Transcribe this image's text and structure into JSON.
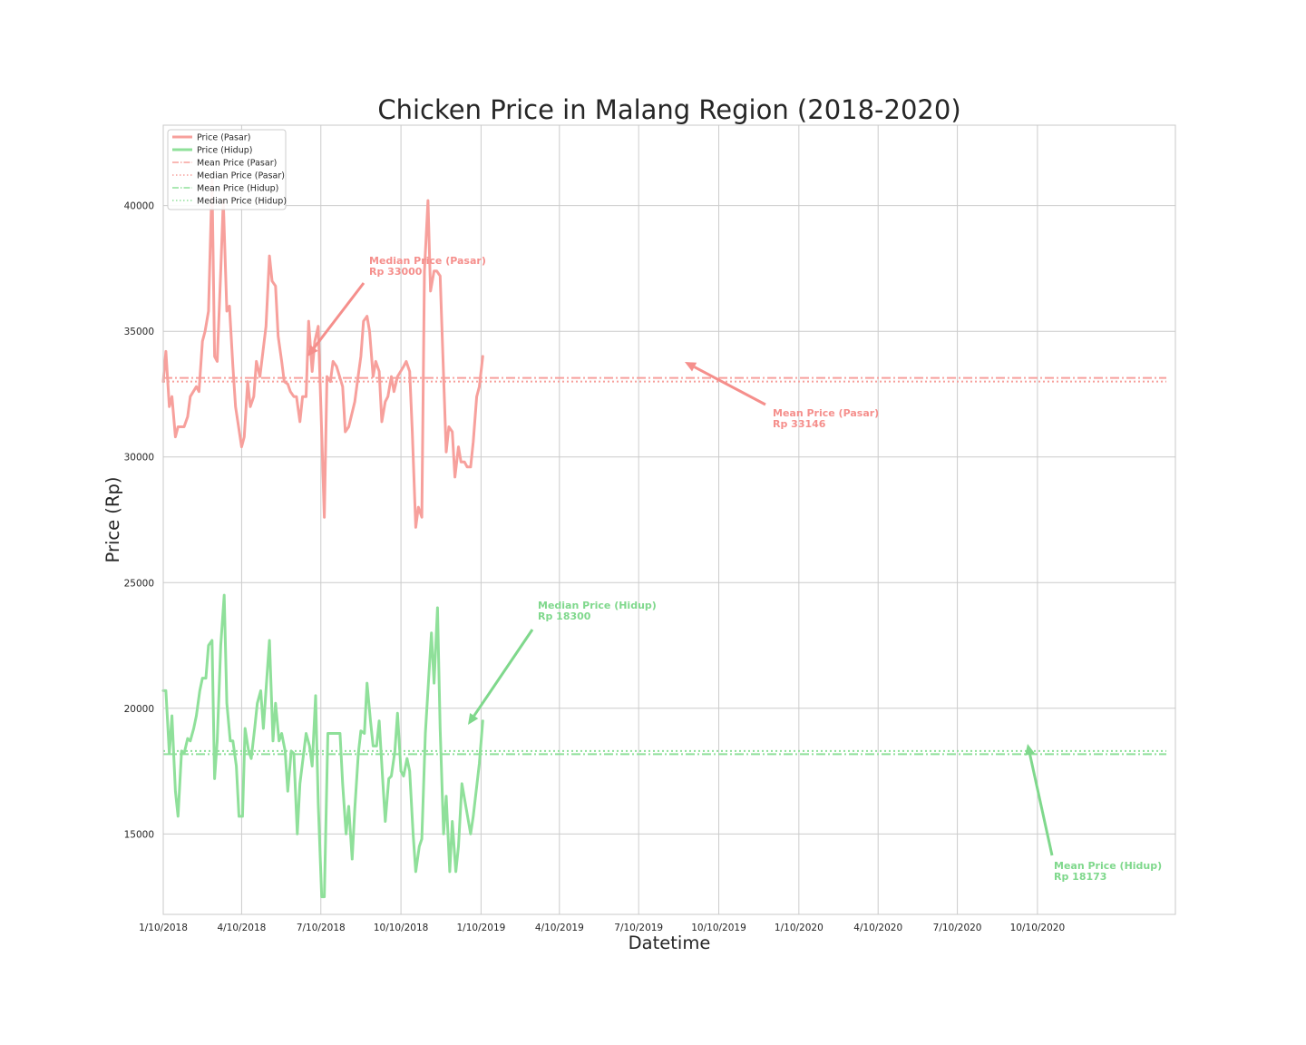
{
  "chart_data": {
    "type": "line",
    "title": "Chicken Price in Malang Region (2018-2020)",
    "xlabel": "Datetime",
    "ylabel": "Price (Rp)",
    "x_ticks": [
      "1/10/2018",
      "4/10/2018",
      "7/10/2018",
      "10/10/2018",
      "1/10/2019",
      "4/10/2019",
      "7/10/2019",
      "10/10/2019",
      "1/10/2020",
      "4/10/2020",
      "7/10/2020",
      "10/10/2020"
    ],
    "x_range": [
      "2018-01-10",
      "2021-01-10"
    ],
    "y_ticks": [
      15000,
      20000,
      25000,
      30000,
      35000,
      40000
    ],
    "ylim": [
      11800,
      43200
    ],
    "grid": true,
    "legend_position": "top-left",
    "colors": {
      "pasar": "#f7a09c",
      "hidup": "#8fe09a",
      "pasar_ann": "#f58f8c",
      "hidup_ann": "#7fd88c",
      "grid": "#cccccc",
      "axes": "#c8c8c8",
      "text": "#262626"
    },
    "series": [
      {
        "name": "Price (Pasar)",
        "color": "#f7a09c",
        "points": [
          [
            "2018-01-10",
            33000
          ],
          [
            "2018-01-13",
            34200
          ],
          [
            "2018-01-17",
            32000
          ],
          [
            "2018-01-20",
            32400
          ],
          [
            "2018-01-24",
            30800
          ],
          [
            "2018-01-27",
            31200
          ],
          [
            "2018-02-03",
            31200
          ],
          [
            "2018-02-07",
            31600
          ],
          [
            "2018-02-10",
            32400
          ],
          [
            "2018-02-17",
            32800
          ],
          [
            "2018-02-20",
            32600
          ],
          [
            "2018-02-24",
            34600
          ],
          [
            "2018-02-27",
            35000
          ],
          [
            "2018-03-03",
            35800
          ],
          [
            "2018-03-07",
            41000
          ],
          [
            "2018-03-10",
            34000
          ],
          [
            "2018-03-13",
            33800
          ],
          [
            "2018-03-17",
            37400
          ],
          [
            "2018-03-20",
            40200
          ],
          [
            "2018-03-24",
            35800
          ],
          [
            "2018-03-27",
            36000
          ],
          [
            "2018-03-31",
            33600
          ],
          [
            "2018-04-03",
            32000
          ],
          [
            "2018-04-10",
            30400
          ],
          [
            "2018-04-13",
            30800
          ],
          [
            "2018-04-17",
            33000
          ],
          [
            "2018-04-20",
            32000
          ],
          [
            "2018-04-24",
            32400
          ],
          [
            "2018-04-27",
            33800
          ],
          [
            "2018-05-01",
            33200
          ],
          [
            "2018-05-08",
            35200
          ],
          [
            "2018-05-12",
            38000
          ],
          [
            "2018-05-15",
            37000
          ],
          [
            "2018-05-19",
            36800
          ],
          [
            "2018-05-22",
            34800
          ],
          [
            "2018-05-26",
            33800
          ],
          [
            "2018-05-29",
            33000
          ],
          [
            "2018-06-02",
            32900
          ],
          [
            "2018-06-05",
            32600
          ],
          [
            "2018-06-09",
            32400
          ],
          [
            "2018-06-12",
            32400
          ],
          [
            "2018-06-16",
            31400
          ],
          [
            "2018-06-19",
            32400
          ],
          [
            "2018-06-23",
            32400
          ],
          [
            "2018-06-26",
            35400
          ],
          [
            "2018-06-30",
            33400
          ],
          [
            "2018-07-03",
            34600
          ],
          [
            "2018-07-07",
            35200
          ],
          [
            "2018-07-10",
            32000
          ],
          [
            "2018-07-14",
            27600
          ],
          [
            "2018-07-17",
            33200
          ],
          [
            "2018-07-21",
            33000
          ],
          [
            "2018-07-24",
            33800
          ],
          [
            "2018-07-28",
            33600
          ],
          [
            "2018-08-04",
            32800
          ],
          [
            "2018-08-07",
            31000
          ],
          [
            "2018-08-11",
            31200
          ],
          [
            "2018-08-18",
            32200
          ],
          [
            "2018-08-21",
            33000
          ],
          [
            "2018-08-25",
            34000
          ],
          [
            "2018-08-28",
            35400
          ],
          [
            "2018-09-01",
            35600
          ],
          [
            "2018-09-04",
            35000
          ],
          [
            "2018-09-08",
            33200
          ],
          [
            "2018-09-11",
            33800
          ],
          [
            "2018-09-15",
            33400
          ],
          [
            "2018-09-18",
            31400
          ],
          [
            "2018-09-22",
            32200
          ],
          [
            "2018-09-25",
            32400
          ],
          [
            "2018-09-29",
            33200
          ],
          [
            "2018-10-02",
            32600
          ],
          [
            "2018-10-06",
            33200
          ],
          [
            "2018-10-13",
            33600
          ],
          [
            "2018-10-16",
            33800
          ],
          [
            "2018-10-20",
            33400
          ],
          [
            "2018-10-23",
            31000
          ],
          [
            "2018-10-27",
            27200
          ],
          [
            "2018-10-30",
            28000
          ],
          [
            "2018-11-03",
            27600
          ],
          [
            "2018-11-06",
            37400
          ],
          [
            "2018-11-10",
            40200
          ],
          [
            "2018-11-13",
            36600
          ],
          [
            "2018-11-17",
            37400
          ],
          [
            "2018-11-20",
            37400
          ],
          [
            "2018-11-24",
            37200
          ],
          [
            "2018-12-01",
            30200
          ],
          [
            "2018-12-04",
            31200
          ],
          [
            "2018-12-08",
            31000
          ],
          [
            "2018-12-11",
            29200
          ],
          [
            "2018-12-15",
            30400
          ],
          [
            "2018-12-18",
            29800
          ],
          [
            "2018-12-22",
            29800
          ],
          [
            "2018-12-25",
            29600
          ],
          [
            "2018-12-29",
            29600
          ],
          [
            "2019-01-01",
            30600
          ],
          [
            "2019-01-05",
            32400
          ],
          [
            "2019-01-08",
            32800
          ],
          [
            "2019-01-12",
            34000
          ]
        ]
      },
      {
        "name": "Price (Hidup)",
        "color": "#8fe09a",
        "points": [
          [
            "2018-01-10",
            20700
          ],
          [
            "2018-01-13",
            20700
          ],
          [
            "2018-01-17",
            18200
          ],
          [
            "2018-01-20",
            19700
          ],
          [
            "2018-01-24",
            16700
          ],
          [
            "2018-01-27",
            15700
          ],
          [
            "2018-01-31",
            18300
          ],
          [
            "2018-02-03",
            18200
          ],
          [
            "2018-02-07",
            18800
          ],
          [
            "2018-02-10",
            18700
          ],
          [
            "2018-02-14",
            19200
          ],
          [
            "2018-02-17",
            19700
          ],
          [
            "2018-02-21",
            20700
          ],
          [
            "2018-02-24",
            21200
          ],
          [
            "2018-02-28",
            21200
          ],
          [
            "2018-03-03",
            22500
          ],
          [
            "2018-03-07",
            22700
          ],
          [
            "2018-03-10",
            17200
          ],
          [
            "2018-03-13",
            18700
          ],
          [
            "2018-03-17",
            22500
          ],
          [
            "2018-03-21",
            24500
          ],
          [
            "2018-03-24",
            20200
          ],
          [
            "2018-03-28",
            18700
          ],
          [
            "2018-03-31",
            18700
          ],
          [
            "2018-04-04",
            17700
          ],
          [
            "2018-04-07",
            15700
          ],
          [
            "2018-04-11",
            15700
          ],
          [
            "2018-04-14",
            19200
          ],
          [
            "2018-04-18",
            18300
          ],
          [
            "2018-04-21",
            18000
          ],
          [
            "2018-04-25",
            19200
          ],
          [
            "2018-04-28",
            20200
          ],
          [
            "2018-05-02",
            20700
          ],
          [
            "2018-05-05",
            19200
          ],
          [
            "2018-05-09",
            21200
          ],
          [
            "2018-05-12",
            22700
          ],
          [
            "2018-05-16",
            18700
          ],
          [
            "2018-05-19",
            20200
          ],
          [
            "2018-05-23",
            18700
          ],
          [
            "2018-05-26",
            19000
          ],
          [
            "2018-05-30",
            18300
          ],
          [
            "2018-06-02",
            16700
          ],
          [
            "2018-06-06",
            18300
          ],
          [
            "2018-06-09",
            18200
          ],
          [
            "2018-06-13",
            15000
          ],
          [
            "2018-06-16",
            17000
          ],
          [
            "2018-06-23",
            19000
          ],
          [
            "2018-06-27",
            18500
          ],
          [
            "2018-06-30",
            17700
          ],
          [
            "2018-07-04",
            20500
          ],
          [
            "2018-07-07",
            16200
          ],
          [
            "2018-07-11",
            12500
          ],
          [
            "2018-07-14",
            12500
          ],
          [
            "2018-07-18",
            19000
          ],
          [
            "2018-07-21",
            19000
          ],
          [
            "2018-07-28",
            19000
          ],
          [
            "2018-08-01",
            19000
          ],
          [
            "2018-08-04",
            17000
          ],
          [
            "2018-08-08",
            15000
          ],
          [
            "2018-08-11",
            16100
          ],
          [
            "2018-08-15",
            14000
          ],
          [
            "2018-08-18",
            16000
          ],
          [
            "2018-08-22",
            18200
          ],
          [
            "2018-08-25",
            19100
          ],
          [
            "2018-08-29",
            19000
          ],
          [
            "2018-09-01",
            21000
          ],
          [
            "2018-09-05",
            19500
          ],
          [
            "2018-09-08",
            18500
          ],
          [
            "2018-09-12",
            18500
          ],
          [
            "2018-09-15",
            19500
          ],
          [
            "2018-09-19",
            17200
          ],
          [
            "2018-09-22",
            15500
          ],
          [
            "2018-09-26",
            17200
          ],
          [
            "2018-09-29",
            17300
          ],
          [
            "2018-10-03",
            18300
          ],
          [
            "2018-10-06",
            19800
          ],
          [
            "2018-10-10",
            17500
          ],
          [
            "2018-10-13",
            17300
          ],
          [
            "2018-10-17",
            18000
          ],
          [
            "2018-10-20",
            17500
          ],
          [
            "2018-10-24",
            15000
          ],
          [
            "2018-10-27",
            13500
          ],
          [
            "2018-10-31",
            14500
          ],
          [
            "2018-11-03",
            14800
          ],
          [
            "2018-11-07",
            19000
          ],
          [
            "2018-11-14",
            23000
          ],
          [
            "2018-11-17",
            21000
          ],
          [
            "2018-11-21",
            24000
          ],
          [
            "2018-11-24",
            19200
          ],
          [
            "2018-11-28",
            15000
          ],
          [
            "2018-12-01",
            16500
          ],
          [
            "2018-12-05",
            13500
          ],
          [
            "2018-12-08",
            15500
          ],
          [
            "2018-12-12",
            13500
          ],
          [
            "2018-12-15",
            14500
          ],
          [
            "2018-12-19",
            17000
          ],
          [
            "2018-12-29",
            15000
          ],
          [
            "2019-01-01",
            15700
          ],
          [
            "2019-01-08",
            17800
          ],
          [
            "2019-01-12",
            19500
          ]
        ]
      }
    ],
    "reference_lines": [
      {
        "name": "Mean Price (Pasar)",
        "value": 33146,
        "style": "dashdot",
        "color": "#f7a09c"
      },
      {
        "name": "Median Price (Pasar)",
        "value": 33000,
        "style": "dotted",
        "color": "#f7a09c"
      },
      {
        "name": "Mean Price (Hidup)",
        "value": 18173,
        "style": "dashdot",
        "color": "#8fe09a"
      },
      {
        "name": "Median Price (Hidup)",
        "value": 18300,
        "style": "dotted",
        "color": "#8fe09a"
      }
    ],
    "annotations": [
      {
        "line1": "Median Price (Pasar)",
        "line2": "Rp 33000",
        "color": "#f58f8c"
      },
      {
        "line1": "Mean Price (Pasar)",
        "line2": "Rp 33146",
        "color": "#f58f8c"
      },
      {
        "line1": "Median Price (Hidup)",
        "line2": "Rp 18300",
        "color": "#7fd88c"
      },
      {
        "line1": "Mean Price (Hidup)",
        "line2": "Rp 18173",
        "color": "#7fd88c"
      }
    ]
  }
}
